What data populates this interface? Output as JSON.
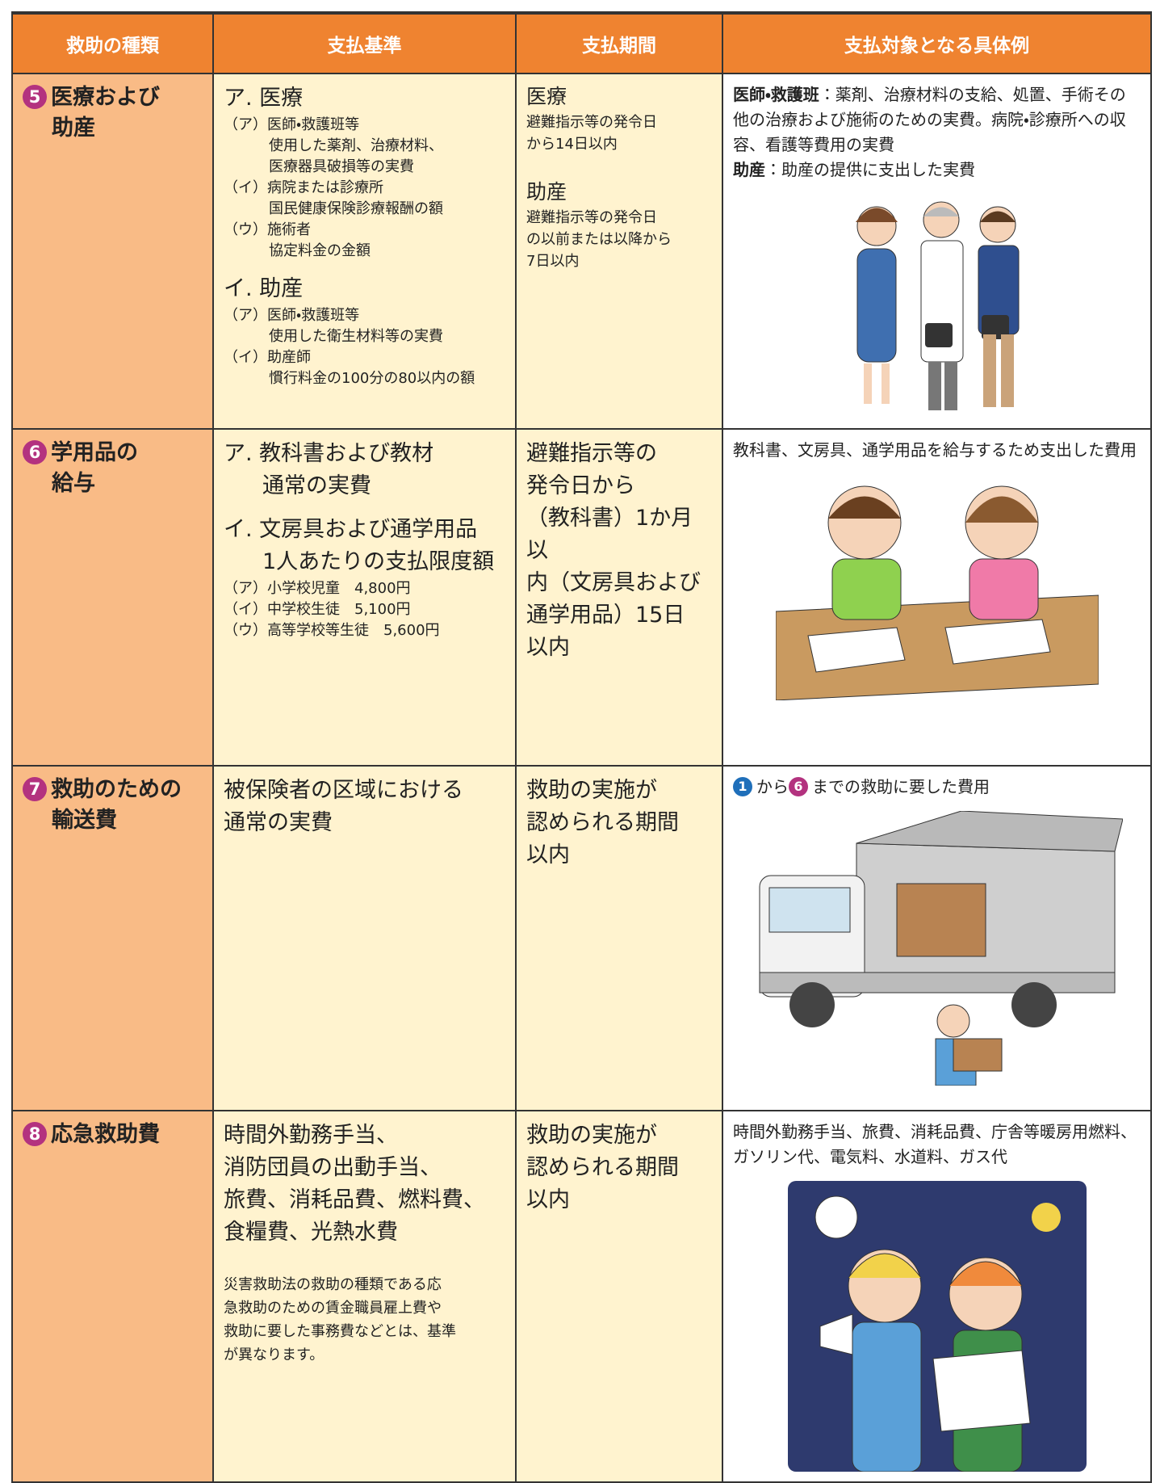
{
  "header": {
    "columns": [
      "救助の種類",
      "支払基準",
      "支払期間",
      "支払対象となる具体例"
    ]
  },
  "rows": [
    {
      "number": "5",
      "type": [
        "医療および",
        "助産"
      ],
      "criteria": {
        "sections": [
          {
            "heading": "ア. 医療",
            "items": [
              {
                "marker": "（ア）",
                "label": "医師・救護班等",
                "detail": [
                  "使用した薬剤、治療材料、",
                  "医療器具破損等の実費"
                ]
              },
              {
                "marker": "（イ）",
                "label": "病院または診療所",
                "detail": [
                  "国民健康保険診療報酬の額"
                ]
              },
              {
                "marker": "（ウ）",
                "label": "施術者",
                "detail": [
                  "協定料金の金額"
                ]
              }
            ]
          },
          {
            "heading": "イ. 助産",
            "items": [
              {
                "marker": "（ア）",
                "label": "医師・救護班等",
                "detail": [
                  "使用した衛生材料等の実費"
                ]
              },
              {
                "marker": "（イ）",
                "label": "助産師",
                "detail": [
                  "慣行料金の100分の80以内の額"
                ]
              }
            ]
          }
        ]
      },
      "period": {
        "sections": [
          {
            "heading": "医療",
            "lines": [
              "避難指示等の発令日",
              "から14日以内"
            ]
          },
          {
            "heading": "助産",
            "lines": [
              "避難指示等の発令日",
              "の以前または以降から",
              "7日以内"
            ]
          }
        ]
      },
      "examples": {
        "entries": [
          {
            "label": "医師・救護班",
            "text": "：薬剤、治療材料の支給、処置、手術その他の治療および施術のための実費。病院・診療所への収容、看護等費用の実費"
          },
          {
            "label": "助産",
            "text": "：助産の提供に支出した実費"
          }
        ]
      }
    },
    {
      "number": "6",
      "type": [
        "学用品の",
        "給与"
      ],
      "criteria": {
        "sections": [
          {
            "heading": "ア. 教科書および教材",
            "lines": [
              "通常の実費"
            ]
          },
          {
            "heading": "イ. 文房具および通学用品",
            "lines": [
              "1人あたりの支払限度額"
            ],
            "items": [
              {
                "marker": "（ア）",
                "label": "小学校児童　4,800円"
              },
              {
                "marker": "（イ）",
                "label": "中学校生徒　5,100円"
              },
              {
                "marker": "（ウ）",
                "label": "高等学校等生徒　5,600円"
              }
            ]
          }
        ]
      },
      "period": {
        "lines": [
          "避難指示等の",
          "発令日から",
          "（教科書）1か月以",
          "内（文房具および",
          "通学用品）15日",
          "以内"
        ]
      },
      "examples": {
        "text": "教科書、文房具、通学用品を給与するため支出した費用"
      }
    },
    {
      "number": "7",
      "type": [
        "救助のための",
        "輸送費"
      ],
      "criteria": {
        "lines": [
          "被保険者の区域における",
          "通常の実費"
        ]
      },
      "period": {
        "lines": [
          "救助の実施が",
          "認められる期間",
          "以内"
        ]
      },
      "examples": {
        "parts": [
          {
            "badge": "1"
          },
          {
            "text": "から"
          },
          {
            "badge": "6"
          },
          {
            "text": "までの救助に要した費用"
          }
        ]
      }
    },
    {
      "number": "8",
      "type": [
        "応急救助費"
      ],
      "criteria": {
        "lines": [
          "時間外勤務手当、",
          "消防団員の出動手当、",
          "旅費、消耗品費、燃料費、",
          "食糧費、光熱水費"
        ],
        "note": [
          "災害救助法の救助の種類である応",
          "急救助のための賃金職員雇上費や",
          "救助に要した事務費などとは、基準",
          "が異なります。"
        ]
      },
      "period": {
        "lines": [
          "救助の実施が",
          "認められる期間",
          "以内"
        ]
      },
      "examples": {
        "text": "時間外勤務手当、旅費、消耗品費、庁舎等暖房用燃料、ガソリン代、電気料、水道料、ガス代"
      }
    }
  ]
}
